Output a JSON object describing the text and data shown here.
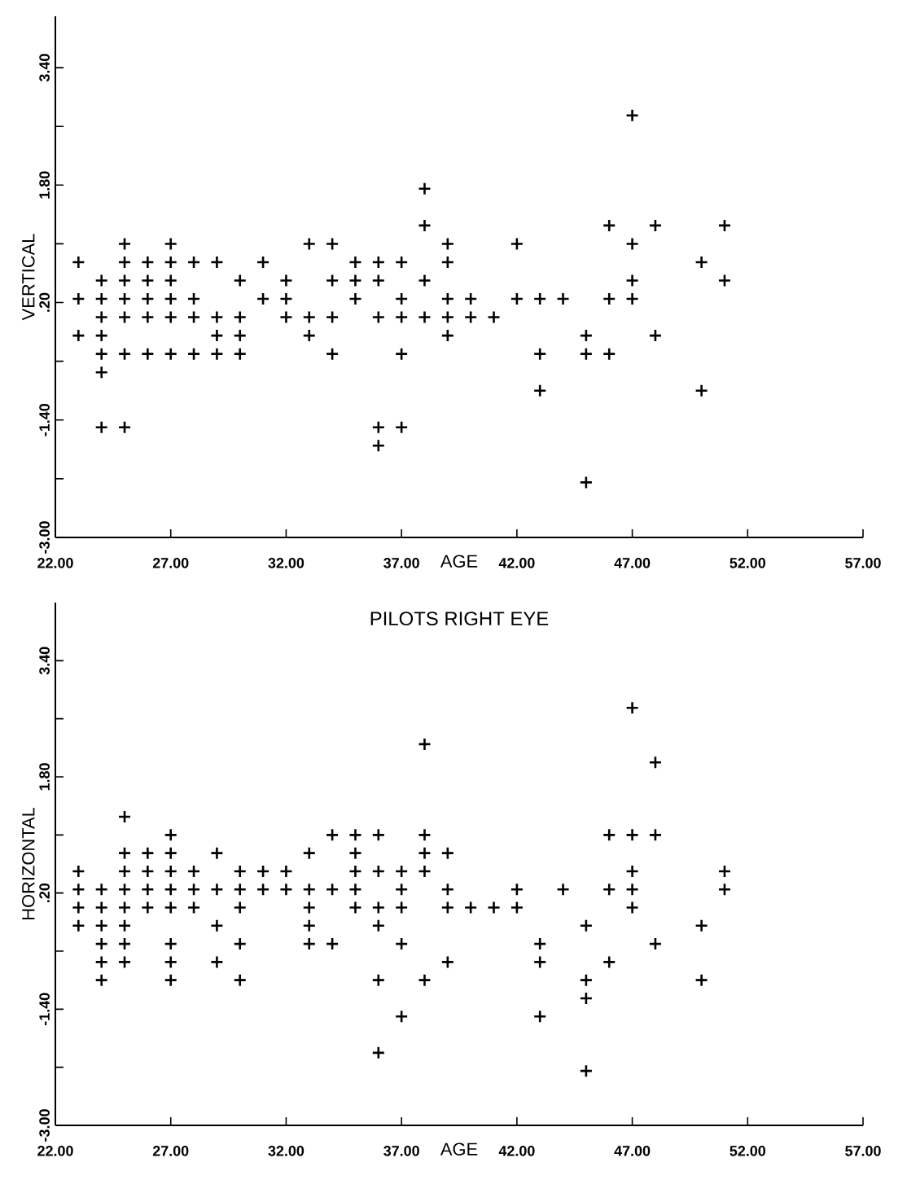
{
  "chart_data": [
    {
      "type": "scatter",
      "xlabel": "AGE",
      "ylabel": "VERTICAL",
      "color": "#000000",
      "marker": "cross",
      "x": [
        23,
        23,
        23,
        24,
        24,
        24,
        24,
        24,
        24,
        24,
        25,
        25,
        25,
        25,
        25,
        25,
        25,
        26,
        26,
        26,
        26,
        26,
        27,
        27,
        27,
        27,
        27,
        27,
        28,
        28,
        28,
        28,
        29,
        29,
        29,
        29,
        30,
        30,
        30,
        30,
        31,
        31,
        32,
        32,
        32,
        33,
        33,
        33,
        34,
        34,
        34,
        34,
        35,
        35,
        35,
        36,
        36,
        36,
        36,
        36,
        37,
        37,
        37,
        37,
        37,
        38,
        38,
        38,
        38,
        39,
        39,
        39,
        39,
        39,
        40,
        40,
        41,
        42,
        42,
        43,
        43,
        43,
        44,
        45,
        45,
        45,
        46,
        46,
        46,
        47,
        47,
        47,
        47,
        48,
        48,
        50,
        50,
        51,
        51
      ],
      "values": [
        0.75,
        0.25,
        -0.25,
        0.5,
        0.25,
        0,
        -0.25,
        -0.5,
        -0.75,
        -1.5,
        1,
        0.75,
        0.5,
        0.25,
        0,
        -0.5,
        -1.5,
        0.75,
        0.5,
        0.25,
        0,
        -0.5,
        1,
        0.75,
        0.5,
        0.25,
        0,
        -0.5,
        0.75,
        0.25,
        0,
        -0.5,
        0.75,
        0,
        -0.25,
        -0.5,
        0.5,
        0,
        -0.25,
        -0.5,
        0.75,
        0.25,
        0.5,
        0.25,
        0,
        1,
        0,
        -0.25,
        1,
        0.5,
        0,
        -0.5,
        0.75,
        0.5,
        0.25,
        0.75,
        0.5,
        0,
        -1.5,
        -1.75,
        0.75,
        0.25,
        0,
        -0.5,
        -1.5,
        1.75,
        1.25,
        0.5,
        0,
        1,
        0.75,
        0.25,
        0,
        -0.25,
        0.25,
        0,
        0,
        1,
        0.25,
        0.25,
        -0.5,
        -1,
        0.25,
        -0.25,
        -0.5,
        -2.25,
        1.25,
        0.25,
        -0.5,
        2.75,
        1,
        0.5,
        0.25,
        1.25,
        -0.25,
        0.75,
        -1,
        1.25,
        0.5
      ],
      "xlim": [
        22,
        57
      ],
      "xticks": [
        {
          "value": 22,
          "label": "22.00"
        },
        {
          "value": 27,
          "label": "27.00"
        },
        {
          "value": 32,
          "label": "32.00"
        },
        {
          "value": 37,
          "label": "37.00"
        },
        {
          "value": 42,
          "label": "42.00"
        },
        {
          "value": 47,
          "label": "47.00"
        },
        {
          "value": 52,
          "label": "52.00"
        },
        {
          "value": 57,
          "label": "57.00"
        }
      ],
      "ylim": [
        -3,
        4.1
      ],
      "yticks": [
        {
          "value": -3,
          "label": "-3.00"
        },
        {
          "value": -2.2,
          "label": null
        },
        {
          "value": -1.4,
          "label": "-1.40"
        },
        {
          "value": -0.6,
          "label": null
        },
        {
          "value": 0.2,
          "label": ".20"
        },
        {
          "value": 1,
          "label": null
        },
        {
          "value": 1.8,
          "label": "1.80"
        },
        {
          "value": 2.6,
          "label": null
        },
        {
          "value": 3.4,
          "label": "3.40"
        }
      ]
    },
    {
      "type": "scatter",
      "title": "PILOTS RIGHT EYE",
      "xlabel": "AGE",
      "ylabel": "HORIZONTAL",
      "color": "#000000",
      "marker": "cross",
      "x": [
        23,
        23,
        23,
        23,
        24,
        24,
        24,
        24,
        24,
        24,
        25,
        25,
        25,
        25,
        25,
        25,
        25,
        25,
        26,
        26,
        26,
        26,
        27,
        27,
        27,
        27,
        27,
        27,
        27,
        27,
        28,
        28,
        28,
        29,
        29,
        29,
        29,
        30,
        30,
        30,
        30,
        30,
        31,
        31,
        32,
        32,
        33,
        33,
        33,
        33,
        33,
        34,
        34,
        34,
        35,
        35,
        35,
        35,
        35,
        36,
        36,
        36,
        36,
        36,
        36,
        37,
        37,
        37,
        37,
        37,
        38,
        38,
        38,
        38,
        38,
        39,
        39,
        39,
        39,
        40,
        41,
        42,
        42,
        43,
        43,
        43,
        44,
        45,
        45,
        45,
        45,
        46,
        46,
        46,
        47,
        47,
        47,
        47,
        47,
        48,
        48,
        48,
        50,
        50,
        51,
        51
      ],
      "values": [
        0.5,
        0.25,
        0,
        -0.25,
        0.25,
        0,
        -0.25,
        -0.5,
        -0.75,
        -1,
        1.25,
        0.75,
        0.5,
        0.25,
        0,
        -0.25,
        -0.5,
        -0.75,
        0.75,
        0.5,
        0.25,
        0,
        1,
        0.75,
        0.5,
        0.25,
        0,
        -0.5,
        -0.75,
        -1,
        0.5,
        0.25,
        0,
        0.75,
        0.25,
        -0.25,
        -0.75,
        0.5,
        0.25,
        0,
        -0.5,
        -1,
        0.5,
        0.25,
        0.5,
        0.25,
        0.75,
        0.25,
        0,
        -0.25,
        -0.5,
        1,
        0.25,
        -0.5,
        1,
        0.75,
        0.5,
        0.25,
        0,
        1,
        0.5,
        0,
        -0.25,
        -1,
        -2,
        0.5,
        0.25,
        0,
        -0.5,
        -1.5,
        2.25,
        1,
        0.75,
        0.5,
        -1,
        0.75,
        0.25,
        0,
        -0.75,
        0,
        0,
        0.25,
        0,
        -0.5,
        -0.75,
        -1.5,
        0.25,
        -0.25,
        -1,
        -1.25,
        -2.25,
        1,
        0.25,
        -0.75,
        2.75,
        1,
        0.5,
        0.25,
        0,
        2,
        1,
        -0.5,
        -0.25,
        -1,
        0.5,
        0.25
      ],
      "xlim": [
        22,
        57
      ],
      "xticks": [
        {
          "value": 22,
          "label": "22.00"
        },
        {
          "value": 27,
          "label": "27.00"
        },
        {
          "value": 32,
          "label": "32.00"
        },
        {
          "value": 37,
          "label": "37.00"
        },
        {
          "value": 42,
          "label": "42.00"
        },
        {
          "value": 47,
          "label": "47.00"
        },
        {
          "value": 52,
          "label": "52.00"
        },
        {
          "value": 57,
          "label": "57.00"
        }
      ],
      "ylim": [
        -3,
        4.2
      ],
      "yticks": [
        {
          "value": -3,
          "label": "-3.00"
        },
        {
          "value": -2.2,
          "label": null
        },
        {
          "value": -1.4,
          "label": "-1.40"
        },
        {
          "value": -0.6,
          "label": null
        },
        {
          "value": 0.2,
          "label": ".20"
        },
        {
          "value": 1,
          "label": null
        },
        {
          "value": 1.8,
          "label": "1.80"
        },
        {
          "value": 2.6,
          "label": null
        },
        {
          "value": 3.4,
          "label": "3.40"
        }
      ]
    }
  ]
}
